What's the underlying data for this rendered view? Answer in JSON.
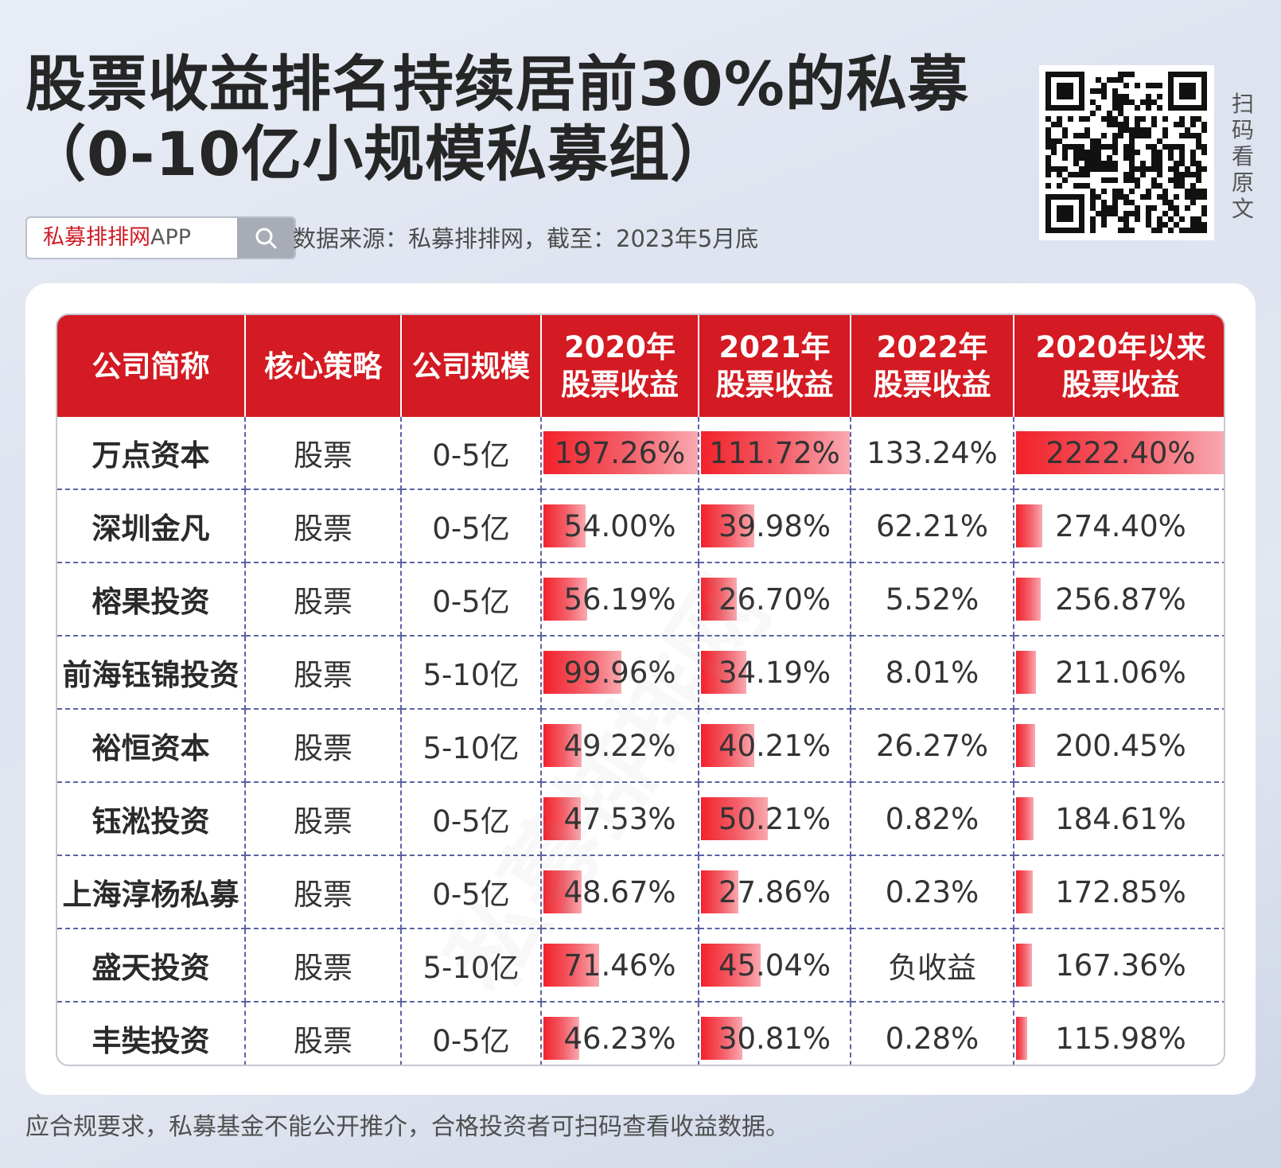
{
  "title": {
    "line1": "股票收益排名持续居前30%的私募",
    "line2": "（0-10亿小规模私募组）"
  },
  "search": {
    "brand": "私募排排网",
    "app": "APP",
    "icon": "search-icon"
  },
  "source_text": "数据来源：私募排排网，截至：2023年5月底",
  "qr_label": [
    "扫",
    "码",
    "看",
    "原",
    "文"
  ],
  "watermark": "私募排排网",
  "table": {
    "headers": [
      {
        "l1": "公司简称",
        "l2": ""
      },
      {
        "l1": "核心策略",
        "l2": ""
      },
      {
        "l1": "公司规模",
        "l2": ""
      },
      {
        "l1": "2020年",
        "l2": "股票收益"
      },
      {
        "l1": "2021年",
        "l2": "股票收益"
      },
      {
        "l1": "2022年",
        "l2": "股票收益"
      },
      {
        "l1": "2020年以来",
        "l2": "股票收益"
      }
    ],
    "rows": [
      {
        "company": "万点资本",
        "strategy": "股票",
        "scale": "0-5亿",
        "y2020": "197.26%",
        "y2021": "111.72%",
        "y2022": "133.24%",
        "since2020": "2222.40%"
      },
      {
        "company": "深圳金凡",
        "strategy": "股票",
        "scale": "0-5亿",
        "y2020": "54.00%",
        "y2021": "39.98%",
        "y2022": "62.21%",
        "since2020": "274.40%"
      },
      {
        "company": "榕果投资",
        "strategy": "股票",
        "scale": "0-5亿",
        "y2020": "56.19%",
        "y2021": "26.70%",
        "y2022": "5.52%",
        "since2020": "256.87%"
      },
      {
        "company": "前海钰锦投资",
        "strategy": "股票",
        "scale": "5-10亿",
        "y2020": "99.96%",
        "y2021": "34.19%",
        "y2022": "8.01%",
        "since2020": "211.06%"
      },
      {
        "company": "裕恒资本",
        "strategy": "股票",
        "scale": "5-10亿",
        "y2020": "49.22%",
        "y2021": "40.21%",
        "y2022": "26.27%",
        "since2020": "200.45%"
      },
      {
        "company": "钰淞投资",
        "strategy": "股票",
        "scale": "0-5亿",
        "y2020": "47.53%",
        "y2021": "50.21%",
        "y2022": "0.82%",
        "since2020": "184.61%"
      },
      {
        "company": "上海淳杨私募",
        "strategy": "股票",
        "scale": "0-5亿",
        "y2020": "48.67%",
        "y2021": "27.86%",
        "y2022": "0.23%",
        "since2020": "172.85%"
      },
      {
        "company": "盛天投资",
        "strategy": "股票",
        "scale": "5-10亿",
        "y2020": "71.46%",
        "y2021": "45.04%",
        "y2022": "负收益",
        "since2020": "167.36%"
      },
      {
        "company": "丰奘投资",
        "strategy": "股票",
        "scale": "0-5亿",
        "y2020": "46.23%",
        "y2021": "30.81%",
        "y2022": "0.28%",
        "since2020": "115.98%"
      }
    ]
  },
  "footer": "应合规要求，私募基金不能公开推介，合格投资者可扫码查看收益数据。",
  "colors": {
    "header_red": "#d41a22",
    "bar_red": "#f2222b",
    "brand_red": "#d01b25"
  }
}
